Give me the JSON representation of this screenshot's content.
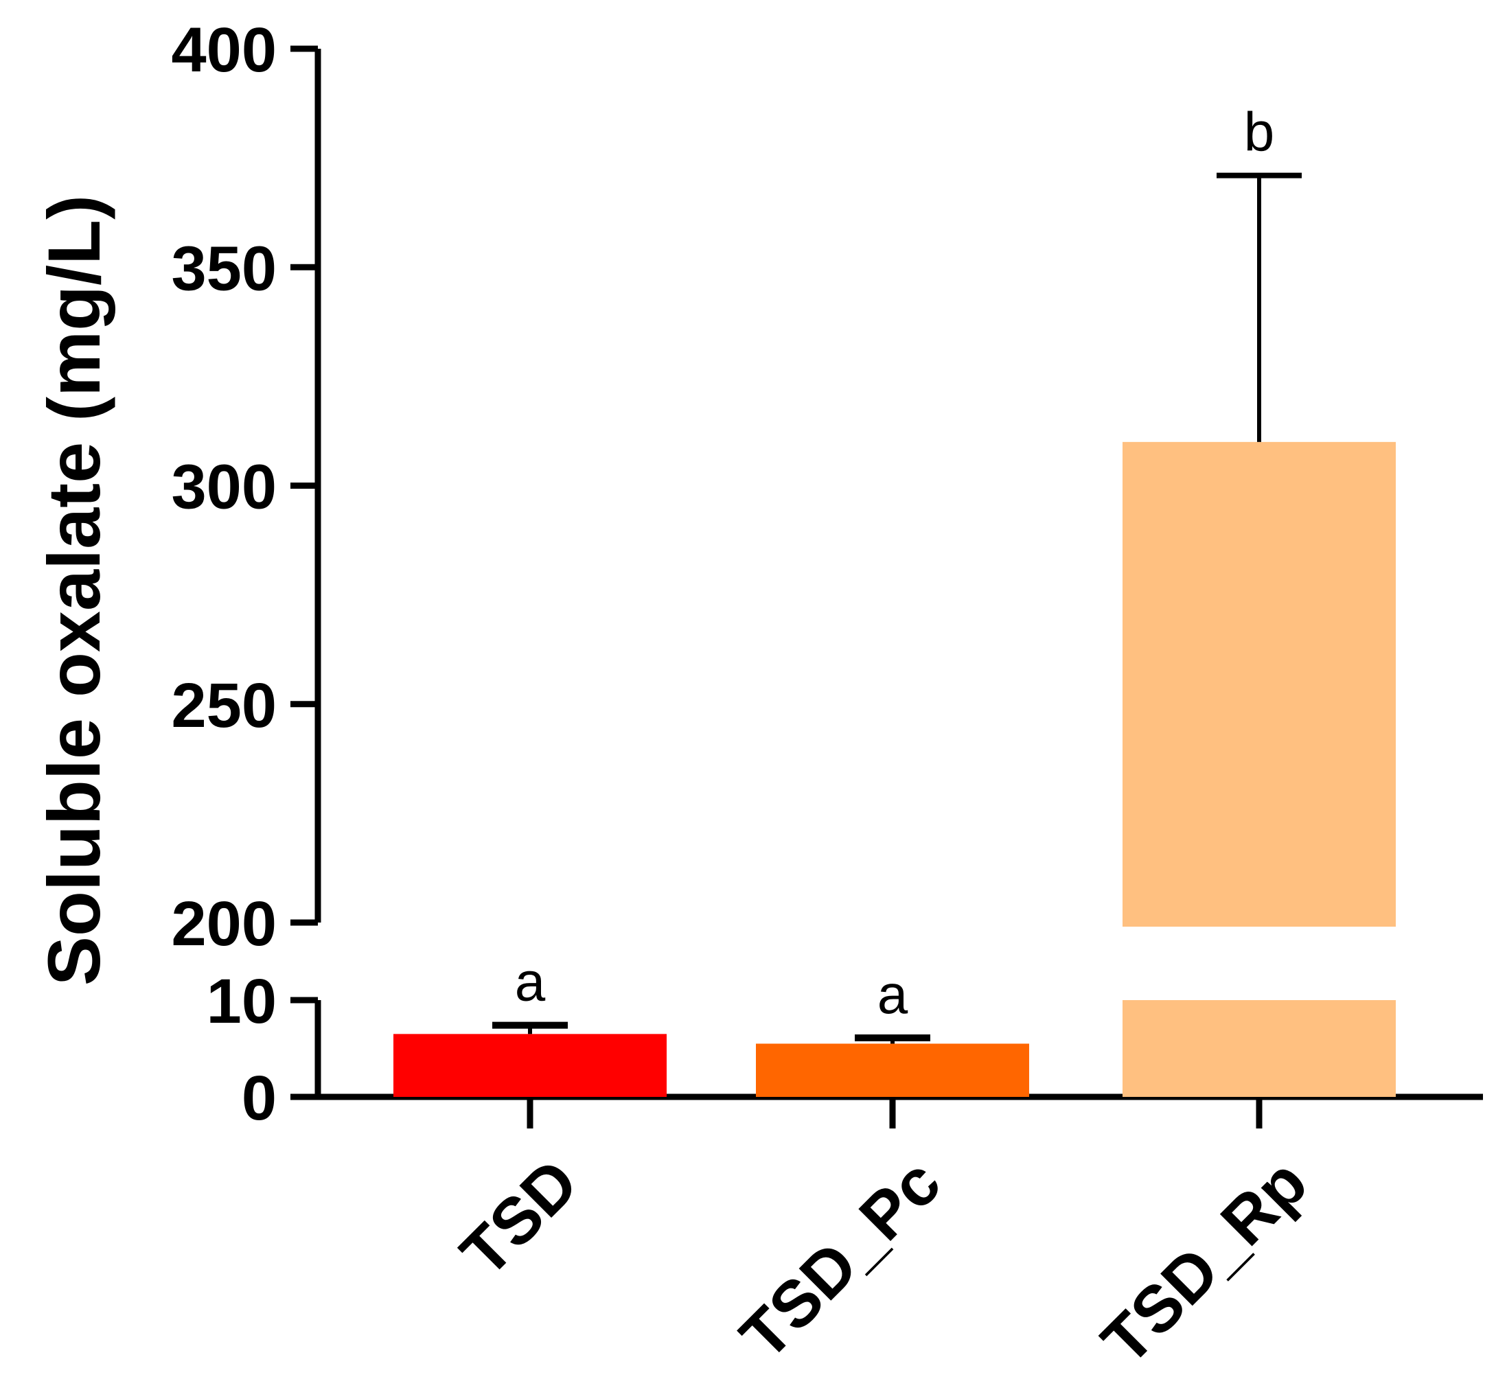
{
  "chart_data": {
    "type": "bar",
    "title": "",
    "xlabel": "",
    "ylabel": "Soluble oxalate (mg/L)",
    "categories": [
      "TSD",
      "TSD_Pc",
      "TSD_Rp"
    ],
    "values": [
      6.5,
      5.5,
      310
    ],
    "errors": [
      0.9,
      0.6,
      61
    ],
    "significance": [
      "a",
      "a",
      "b"
    ],
    "colors": [
      "#ff0000",
      "#ff6600",
      "#ffc080"
    ],
    "y_axis_break": {
      "lower_segment": [
        0,
        10
      ],
      "upper_segment": [
        200,
        400
      ],
      "lower_ticks": [
        0,
        10
      ],
      "upper_ticks": [
        200,
        250,
        300,
        350,
        400
      ]
    },
    "grid": false,
    "legend": "none"
  }
}
